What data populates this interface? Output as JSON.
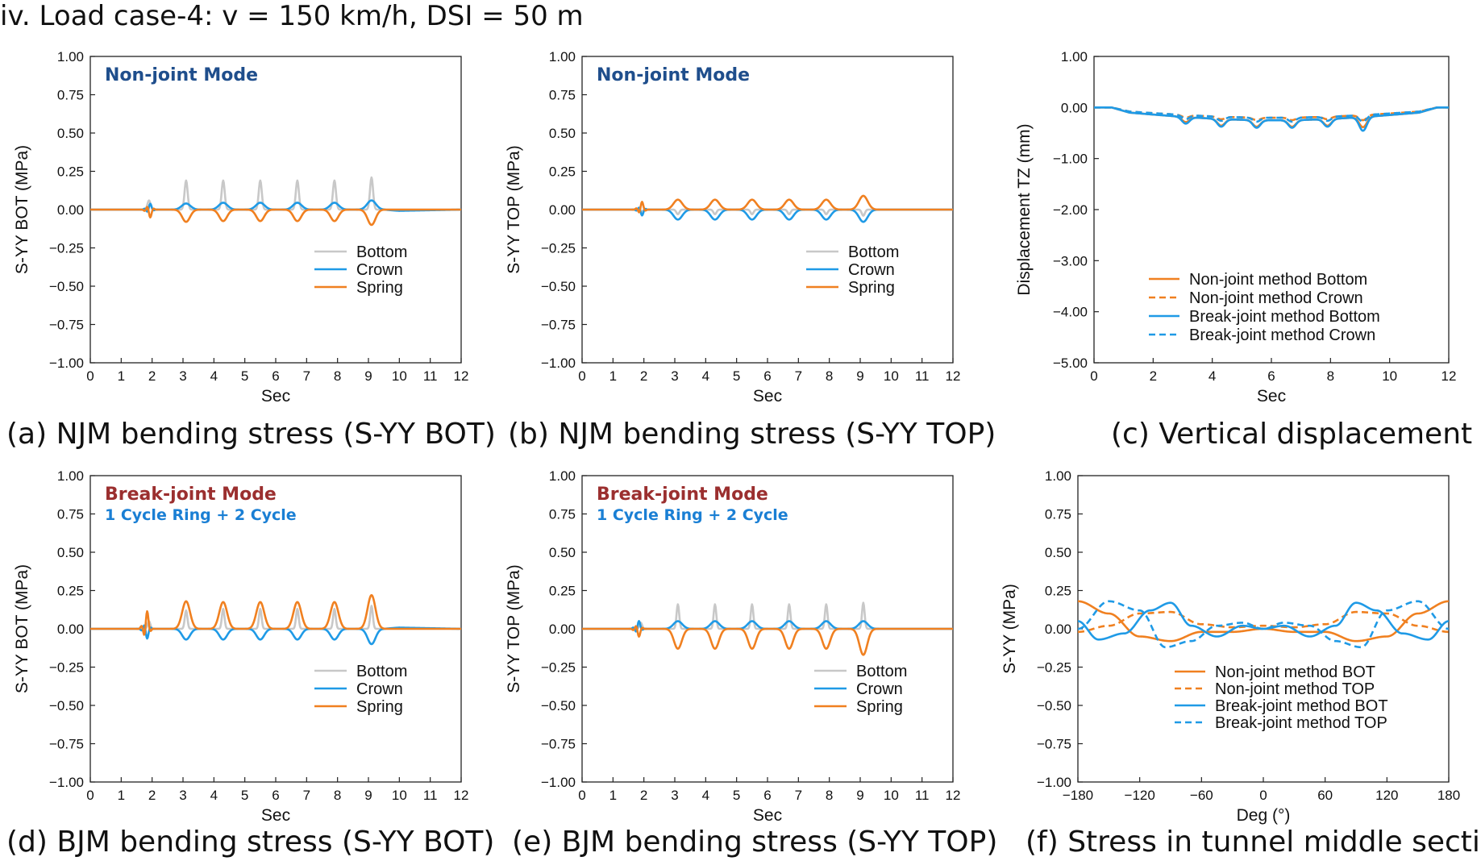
{
  "figure_title": "iv. Load case-4: v = 150 km/h, DSI = 50 m",
  "colors": {
    "bottom": "#c8c8c8",
    "crown": "#1f9ae6",
    "spring": "#f08020",
    "nonjoint": "#f08020",
    "breakjoint": "#1f9ae6",
    "mode_njm": "#1f4e8c",
    "mode_bjm": "#9b2f2f",
    "mode_cycle": "#1a7fd4"
  },
  "chart_data": [
    {
      "id": "a",
      "type": "line",
      "caption": "(a) NJM bending stress (S-YY BOT)",
      "xlabel": "Sec",
      "ylabel": "S-YY  BOT (MPa)",
      "xlim": [
        0,
        12
      ],
      "ylim": [
        -1.0,
        1.0
      ],
      "xticks": [
        0,
        1,
        2,
        3,
        4,
        5,
        6,
        7,
        8,
        9,
        10,
        11,
        12
      ],
      "xtick_labels": [
        "0",
        "1",
        "2",
        "3",
        "4",
        "5",
        "6",
        "7",
        "8",
        "9",
        "10",
        "11",
        "12"
      ],
      "yticks": [
        1.0,
        0.75,
        0.5,
        0.25,
        0.0,
        -0.25,
        -0.5,
        -0.75,
        -1.0
      ],
      "ytick_labels": [
        "1.00",
        "0.75",
        "0.50",
        "0.25",
        "0.00",
        "−0.25",
        "−0.50",
        "−0.75",
        "−1.00"
      ],
      "annotations": [
        {
          "text": "Non-joint Mode",
          "color_key": "mode_njm",
          "style": "ann1"
        }
      ],
      "legend": [
        {
          "label": "Bottom",
          "dash": false,
          "color_key": "bottom"
        },
        {
          "label": "Crown",
          "dash": false,
          "color_key": "crown"
        },
        {
          "label": "Spring",
          "dash": false,
          "color_key": "spring"
        }
      ],
      "series": [
        {
          "name": "Bottom",
          "color_key": "bottom",
          "dashed": false,
          "shape": "spikes",
          "centers": [
            1.9,
            3.1,
            4.3,
            5.5,
            6.7,
            7.9,
            9.1
          ],
          "amps": [
            0.06,
            0.19,
            0.19,
            0.19,
            0.19,
            0.19,
            0.21
          ],
          "width": 0.07
        },
        {
          "name": "Crown",
          "color_key": "crown",
          "dashed": false,
          "shape": "bumps",
          "centers": [
            3.1,
            4.3,
            5.5,
            6.7,
            7.9,
            9.1
          ],
          "amps": [
            0.04,
            0.045,
            0.045,
            0.045,
            0.045,
            0.06
          ],
          "width": 0.2,
          "noise_at": 1.9,
          "noise_amp": 0.03,
          "tail": -0.01
        },
        {
          "name": "Spring",
          "color_key": "spring",
          "dashed": false,
          "shape": "bumps",
          "centers": [
            3.1,
            4.3,
            5.5,
            6.7,
            7.9,
            9.1
          ],
          "amps": [
            -0.08,
            -0.075,
            -0.075,
            -0.075,
            -0.075,
            -0.1
          ],
          "width": 0.18,
          "noise_at": 1.9,
          "noise_amp": -0.04
        }
      ]
    },
    {
      "id": "b",
      "type": "line",
      "caption": "(b) NJM bending stress (S-YY TOP)",
      "xlabel": "Sec",
      "ylabel": "S-YY  TOP (MPa)",
      "xlim": [
        0,
        12
      ],
      "ylim": [
        -1.0,
        1.0
      ],
      "xticks": [
        0,
        1,
        2,
        3,
        4,
        5,
        6,
        7,
        8,
        9,
        10,
        11,
        12
      ],
      "xtick_labels": [
        "0",
        "1",
        "2",
        "3",
        "4",
        "5",
        "6",
        "7",
        "8",
        "9",
        "10",
        "11",
        "12"
      ],
      "yticks": [
        1.0,
        0.75,
        0.5,
        0.25,
        0.0,
        -0.25,
        -0.5,
        -0.75,
        -1.0
      ],
      "ytick_labels": [
        "1.00",
        "0.75",
        "0.50",
        "0.25",
        "0.00",
        "−0.25",
        "−0.50",
        "−0.75",
        "−1.00"
      ],
      "annotations": [
        {
          "text": "Non-joint Mode",
          "color_key": "mode_njm",
          "style": "ann1"
        }
      ],
      "legend": [
        {
          "label": "Bottom",
          "dash": false,
          "color_key": "bottom"
        },
        {
          "label": "Crown",
          "dash": false,
          "color_key": "crown"
        },
        {
          "label": "Spring",
          "dash": false,
          "color_key": "spring"
        }
      ],
      "series": [
        {
          "name": "Bottom",
          "color_key": "bottom",
          "dashed": false,
          "shape": "spikes",
          "centers": [
            1.9,
            3.1,
            4.3,
            5.5,
            6.7,
            7.9,
            9.1
          ],
          "amps": [
            -0.02,
            -0.03,
            -0.03,
            -0.03,
            -0.03,
            -0.03,
            -0.04
          ],
          "width": 0.07
        },
        {
          "name": "Crown",
          "color_key": "crown",
          "dashed": false,
          "shape": "bumps",
          "centers": [
            3.1,
            4.3,
            5.5,
            6.7,
            7.9,
            9.1
          ],
          "amps": [
            -0.065,
            -0.065,
            -0.065,
            -0.065,
            -0.065,
            -0.08
          ],
          "width": 0.2,
          "noise_at": 1.9,
          "noise_amp": -0.03
        },
        {
          "name": "Spring",
          "color_key": "spring",
          "dashed": false,
          "shape": "bumps",
          "centers": [
            3.1,
            4.3,
            5.5,
            6.7,
            7.9,
            9.1
          ],
          "amps": [
            0.065,
            0.065,
            0.065,
            0.065,
            0.065,
            0.09
          ],
          "width": 0.2,
          "noise_at": 1.9,
          "noise_amp": 0.04
        }
      ]
    },
    {
      "id": "c",
      "type": "line",
      "caption": "(c) Vertical displacement",
      "xlabel": "Sec",
      "ylabel": "Displacement  TZ (mm)",
      "xlim": [
        0,
        12
      ],
      "ylim": [
        -5.0,
        1.0
      ],
      "xticks": [
        0,
        2,
        4,
        6,
        8,
        10,
        12
      ],
      "xtick_labels": [
        "0",
        "2",
        "4",
        "6",
        "8",
        "10",
        "12"
      ],
      "yticks": [
        1.0,
        0.0,
        -1.0,
        -2.0,
        -3.0,
        -4.0,
        -5.0
      ],
      "ytick_labels": [
        "1.00",
        "0.00",
        "−1.00",
        "−2.00",
        "−3.00",
        "−4.00",
        "−5.00"
      ],
      "annotations": [],
      "legend": [
        {
          "label": "Non-joint method  Bottom",
          "dash": false,
          "color_key": "nonjoint"
        },
        {
          "label": "Non-joint method  Crown",
          "dash": true,
          "color_key": "nonjoint"
        },
        {
          "label": "Break-joint method  Bottom",
          "dash": false,
          "color_key": "breakjoint"
        },
        {
          "label": "Break-joint method  Crown",
          "dash": true,
          "color_key": "breakjoint"
        }
      ],
      "series": [
        {
          "name": "Non-joint method  Bottom",
          "color_key": "nonjoint",
          "dashed": false,
          "shape": "disp",
          "centers": [
            3.1,
            4.3,
            5.5,
            6.7,
            7.9,
            9.1
          ],
          "amps": [
            -0.35,
            -0.38,
            -0.38,
            -0.38,
            -0.38,
            -0.45
          ],
          "base": -0.25
        },
        {
          "name": "Non-joint method  Crown",
          "color_key": "nonjoint",
          "dashed": true,
          "shape": "disp",
          "centers": [
            3.1,
            4.3,
            5.5,
            6.7,
            7.9,
            9.1
          ],
          "amps": [
            -0.25,
            -0.25,
            -0.25,
            -0.25,
            -0.25,
            -0.3
          ],
          "base": -0.2
        },
        {
          "name": "Break-joint method  Bottom",
          "color_key": "breakjoint",
          "dashed": false,
          "shape": "disp",
          "centers": [
            3.1,
            4.3,
            5.5,
            6.7,
            7.9,
            9.1
          ],
          "amps": [
            -0.38,
            -0.4,
            -0.4,
            -0.4,
            -0.4,
            -0.52
          ],
          "base": -0.25
        },
        {
          "name": "Break-joint method  Crown",
          "color_key": "breakjoint",
          "dashed": true,
          "shape": "disp",
          "centers": [
            3.1,
            4.3,
            5.5,
            6.7,
            7.9,
            9.1
          ],
          "amps": [
            -0.28,
            -0.28,
            -0.28,
            -0.28,
            -0.28,
            -0.33
          ],
          "base": -0.2
        }
      ]
    },
    {
      "id": "d",
      "type": "line",
      "caption": "(d) BJM bending stress (S-YY BOT)",
      "xlabel": "Sec",
      "ylabel": "S-YY  BOT (MPa)",
      "xlim": [
        0,
        12
      ],
      "ylim": [
        -1.0,
        1.0
      ],
      "xticks": [
        0,
        1,
        2,
        3,
        4,
        5,
        6,
        7,
        8,
        9,
        10,
        11,
        12
      ],
      "xtick_labels": [
        "0",
        "1",
        "2",
        "3",
        "4",
        "5",
        "6",
        "7",
        "8",
        "9",
        "10",
        "11",
        "12"
      ],
      "yticks": [
        1.0,
        0.75,
        0.5,
        0.25,
        0.0,
        -0.25,
        -0.5,
        -0.75,
        -1.0
      ],
      "ytick_labels": [
        "1.00",
        "0.75",
        "0.50",
        "0.25",
        "0.00",
        "−0.25",
        "−0.50",
        "−0.75",
        "−1.00"
      ],
      "annotations": [
        {
          "text": "Break-joint Mode",
          "color_key": "mode_bjm",
          "style": "ann1"
        },
        {
          "text": "1 Cycle Ring + 2 Cycle",
          "color_key": "mode_cycle",
          "style": "ann2"
        }
      ],
      "legend": [
        {
          "label": "Bottom",
          "dash": false,
          "color_key": "bottom"
        },
        {
          "label": "Crown",
          "dash": false,
          "color_key": "crown"
        },
        {
          "label": "Spring",
          "dash": false,
          "color_key": "spring"
        }
      ],
      "series": [
        {
          "name": "Bottom",
          "color_key": "bottom",
          "dashed": false,
          "shape": "spikes",
          "centers": [
            1.9,
            3.1,
            4.3,
            5.5,
            6.7,
            7.9,
            9.1
          ],
          "amps": [
            0.05,
            0.12,
            0.13,
            0.13,
            0.13,
            0.13,
            0.15
          ],
          "width": 0.06
        },
        {
          "name": "Crown",
          "color_key": "crown",
          "dashed": false,
          "shape": "bumps",
          "centers": [
            3.1,
            4.3,
            5.5,
            6.7,
            7.9,
            9.1
          ],
          "amps": [
            -0.07,
            -0.07,
            -0.07,
            -0.07,
            -0.07,
            -0.1
          ],
          "width": 0.18,
          "noise_at": 1.8,
          "noise_amp": -0.05,
          "tail": 0.01
        },
        {
          "name": "Spring",
          "color_key": "spring",
          "dashed": false,
          "shape": "bumps",
          "centers": [
            3.1,
            4.3,
            5.5,
            6.7,
            7.9,
            9.1
          ],
          "amps": [
            0.18,
            0.175,
            0.175,
            0.175,
            0.175,
            0.22
          ],
          "width": 0.18,
          "noise_at": 1.8,
          "noise_amp": 0.09
        }
      ]
    },
    {
      "id": "e",
      "type": "line",
      "caption": "(e) BJM bending stress (S-YY TOP)",
      "xlabel": "Sec",
      "ylabel": "S-YY  TOP (MPa)",
      "xlim": [
        0,
        12
      ],
      "ylim": [
        -1.0,
        1.0
      ],
      "xticks": [
        0,
        1,
        2,
        3,
        4,
        5,
        6,
        7,
        8,
        9,
        10,
        11,
        12
      ],
      "xtick_labels": [
        "0",
        "1",
        "2",
        "3",
        "4",
        "5",
        "6",
        "7",
        "8",
        "9",
        "10",
        "11",
        "12"
      ],
      "yticks": [
        1.0,
        0.75,
        0.5,
        0.25,
        0.0,
        -0.25,
        -0.5,
        -0.75,
        -1.0
      ],
      "ytick_labels": [
        "1.00",
        "0.75",
        "0.50",
        "0.25",
        "0.00",
        "−0.25",
        "−0.50",
        "−0.75",
        "−1.00"
      ],
      "annotations": [
        {
          "text": "Break-joint Mode",
          "color_key": "mode_bjm",
          "style": "ann1"
        },
        {
          "text": "1 Cycle Ring + 2 Cycle",
          "color_key": "mode_cycle",
          "style": "ann2"
        }
      ],
      "legend": [
        {
          "label": "Bottom",
          "dash": false,
          "color_key": "bottom"
        },
        {
          "label": "Crown",
          "dash": false,
          "color_key": "crown"
        },
        {
          "label": "Spring",
          "dash": false,
          "color_key": "spring"
        }
      ],
      "series": [
        {
          "name": "Bottom",
          "color_key": "bottom",
          "dashed": false,
          "shape": "spikes",
          "centers": [
            1.9,
            3.1,
            4.3,
            5.5,
            6.7,
            7.9,
            9.1
          ],
          "amps": [
            0.04,
            0.16,
            0.16,
            0.16,
            0.16,
            0.16,
            0.17
          ],
          "width": 0.06
        },
        {
          "name": "Crown",
          "color_key": "crown",
          "dashed": false,
          "shape": "bumps",
          "centers": [
            3.1,
            4.3,
            5.5,
            6.7,
            7.9,
            9.1
          ],
          "amps": [
            0.05,
            0.05,
            0.05,
            0.05,
            0.05,
            0.05
          ],
          "width": 0.2,
          "noise_at": 1.8,
          "noise_amp": 0.04
        },
        {
          "name": "Spring",
          "color_key": "spring",
          "dashed": false,
          "shape": "bumps",
          "centers": [
            3.1,
            4.3,
            5.5,
            6.7,
            7.9,
            9.1
          ],
          "amps": [
            -0.13,
            -0.13,
            -0.13,
            -0.13,
            -0.13,
            -0.17
          ],
          "width": 0.18,
          "noise_at": 1.8,
          "noise_amp": -0.04
        }
      ]
    },
    {
      "id": "f",
      "type": "line",
      "caption": "(f) Stress in tunnel middle section",
      "xlabel": "Deg (°)",
      "ylabel": "S-YY (MPa)",
      "xlim": [
        -180,
        180
      ],
      "ylim": [
        -1.0,
        1.0
      ],
      "xticks": [
        -180,
        -120,
        -60,
        0,
        60,
        120,
        180
      ],
      "xtick_labels": [
        "−180",
        "−120",
        "−60",
        "0",
        "60",
        "120",
        "180"
      ],
      "yticks": [
        1.0,
        0.75,
        0.5,
        0.25,
        0.0,
        -0.25,
        -0.5,
        -0.75,
        -1.0
      ],
      "ytick_labels": [
        "1.00",
        "0.75",
        "0.50",
        "0.25",
        "0.00",
        "−0.25",
        "−0.50",
        "−0.75",
        "−1.00"
      ],
      "annotations": [],
      "legend": [
        {
          "label": "Non-joint method      BOT",
          "dash": false,
          "color_key": "nonjoint"
        },
        {
          "label": "Non-joint method      TOP",
          "dash": true,
          "color_key": "nonjoint"
        },
        {
          "label": "Break-joint method  BOT",
          "dash": false,
          "color_key": "breakjoint"
        },
        {
          "label": "Break-joint method  TOP",
          "dash": true,
          "color_key": "breakjoint"
        }
      ],
      "series": [
        {
          "name": "Non-joint method BOT",
          "color_key": "nonjoint",
          "dashed": false,
          "shape": "points",
          "x": [
            -180,
            -150,
            -120,
            -90,
            -60,
            -30,
            0,
            30,
            60,
            90,
            120,
            150,
            180
          ],
          "y": [
            0.18,
            0.1,
            -0.05,
            -0.08,
            -0.02,
            -0.02,
            0.0,
            -0.02,
            -0.02,
            -0.08,
            -0.05,
            0.1,
            0.18
          ]
        },
        {
          "name": "Non-joint method TOP",
          "color_key": "nonjoint",
          "dashed": true,
          "shape": "points",
          "x": [
            -180,
            -150,
            -120,
            -90,
            -60,
            -30,
            0,
            30,
            60,
            90,
            120,
            150,
            180
          ],
          "y": [
            -0.02,
            0.02,
            0.1,
            0.11,
            0.03,
            0.01,
            0.02,
            0.01,
            0.03,
            0.11,
            0.1,
            0.02,
            -0.02
          ]
        },
        {
          "name": "Break-joint method BOT",
          "color_key": "breakjoint",
          "dashed": false,
          "shape": "points",
          "x": [
            -180,
            -160,
            -135,
            -110,
            -90,
            -70,
            -45,
            -20,
            0,
            20,
            45,
            70,
            90,
            110,
            135,
            160,
            180
          ],
          "y": [
            0.05,
            -0.07,
            -0.03,
            0.12,
            0.17,
            0.02,
            -0.05,
            0.02,
            0.0,
            0.02,
            -0.05,
            0.02,
            0.17,
            0.12,
            -0.03,
            -0.07,
            0.05
          ]
        },
        {
          "name": "Break-joint method TOP",
          "color_key": "breakjoint",
          "dashed": true,
          "shape": "points",
          "x": [
            -180,
            -150,
            -120,
            -95,
            -70,
            -45,
            -20,
            0,
            20,
            45,
            70,
            95,
            120,
            150,
            180
          ],
          "y": [
            0.0,
            0.18,
            0.12,
            -0.12,
            -0.08,
            0.02,
            0.04,
            0.0,
            0.04,
            0.02,
            -0.08,
            -0.12,
            0.12,
            0.18,
            0.0
          ]
        }
      ]
    }
  ]
}
